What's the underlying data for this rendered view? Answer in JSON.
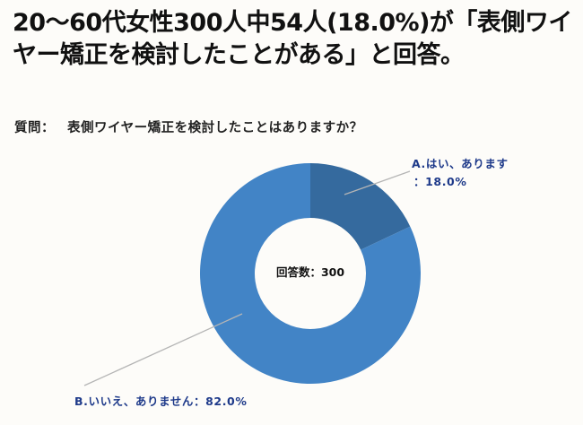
{
  "title": "20〜60代女性300人中54人(18.0%)が「表側ワイヤー矯正を検討したことがある」と回答。",
  "question": {
    "label": "質問：",
    "text": "表側ワイヤー矯正を検討したことはありますか？"
  },
  "center_label": "回答数：300",
  "labels": {
    "a_line1": "A.はい、あります",
    "a_line2": "：18.0%",
    "b": "B.いいえ、ありません：82.0%"
  },
  "colors": {
    "slice_a": "#356a9e",
    "slice_b": "#4284c6",
    "label_text": "#1e3a8a",
    "leader_line": "#b5b5b5",
    "background": "#fdfcf9"
  },
  "chart_data": {
    "type": "pie",
    "subtype": "donut",
    "title": "20〜60代女性300人中54人(18.0%)が「表側ワイヤー矯正を検討したことがある」と回答。",
    "question": "表側ワイヤー矯正を検討したことはありますか？",
    "total_responses": 300,
    "categories": [
      "A.はい、あります",
      "B.いいえ、ありません"
    ],
    "values": [
      18.0,
      82.0
    ],
    "counts": [
      54,
      246
    ],
    "unit": "%",
    "center_text": "回答数：300",
    "legend": "none (callout labels)"
  }
}
